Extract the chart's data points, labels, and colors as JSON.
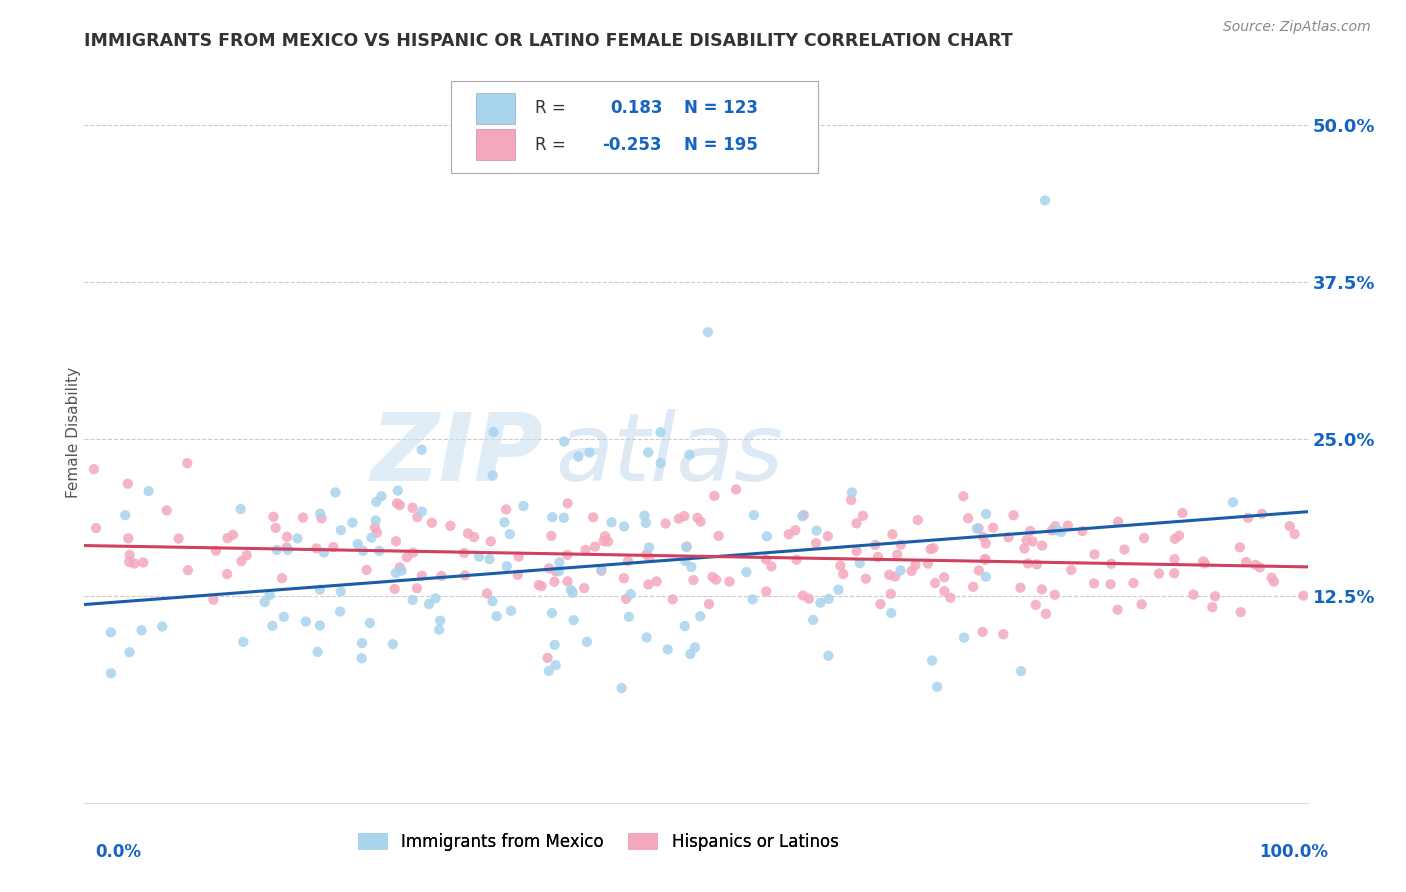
{
  "title": "IMMIGRANTS FROM MEXICO VS HISPANIC OR LATINO FEMALE DISABILITY CORRELATION CHART",
  "source": "Source: ZipAtlas.com",
  "ylabel": "Female Disability",
  "legend_label1": "Immigrants from Mexico",
  "legend_label2": "Hispanics or Latinos",
  "R1": 0.183,
  "N1": 123,
  "R2": -0.253,
  "N2": 195,
  "color_blue": "#A8D4EE",
  "color_pink": "#F4A8BC",
  "line_color_blue": "#1A5EA8",
  "line_color_pink": "#D04060",
  "watermark_zip": "ZIP",
  "watermark_atlas": "atlas",
  "background_color": "#FFFFFF",
  "grid_color": "#CCCCCC",
  "title_color": "#333333",
  "axis_label_color": "#1565C0",
  "xlim": [
    0.0,
    1.0
  ],
  "ylim": [
    -0.04,
    0.55
  ],
  "ytick_vals": [
    0.125,
    0.25,
    0.375,
    0.5
  ],
  "ytick_labels": [
    "12.5%",
    "25.0%",
    "37.5%",
    "50.0%"
  ]
}
